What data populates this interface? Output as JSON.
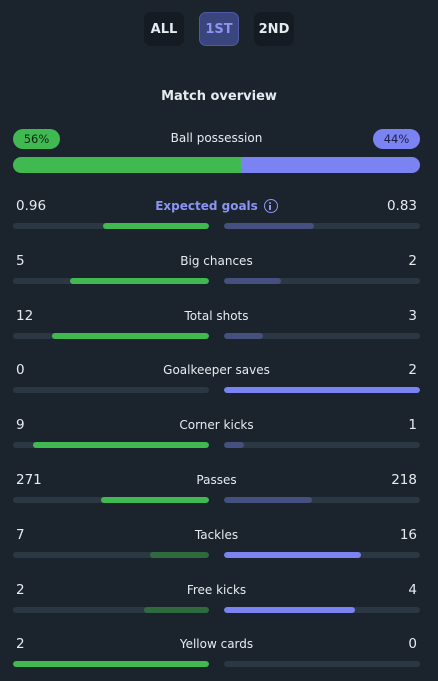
{
  "tabs": [
    {
      "label": "ALL",
      "active": false
    },
    {
      "label": "1ST",
      "active": true
    },
    {
      "label": "2ND",
      "active": false
    }
  ],
  "section_title": "Match overview",
  "possession": {
    "label": "Ball possession",
    "home_label": "56%",
    "away_label": "44%",
    "home": 56,
    "away": 44
  },
  "colors": {
    "home_win": "#3fb950",
    "home_lose": "#2e6a3d",
    "away_win": "#7b82f2",
    "away_lose": "#46507f",
    "track": "#2c3744",
    "accent": "#8b94f2"
  },
  "stats": [
    {
      "label": "Expected goals",
      "home": "0.96",
      "away": "0.83",
      "home_fill": 0.54,
      "away_fill": 0.46,
      "highlight": true
    },
    {
      "label": "Big chances",
      "home": "5",
      "away": "2",
      "home_fill": 0.71,
      "away_fill": 0.29
    },
    {
      "label": "Total shots",
      "home": "12",
      "away": "3",
      "home_fill": 0.8,
      "away_fill": 0.2
    },
    {
      "label": "Goalkeeper saves",
      "home": "0",
      "away": "2",
      "home_fill": 0.0,
      "away_fill": 1.0
    },
    {
      "label": "Corner kicks",
      "home": "9",
      "away": "1",
      "home_fill": 0.9,
      "away_fill": 0.1
    },
    {
      "label": "Passes",
      "home": "271",
      "away": "218",
      "home_fill": 0.55,
      "away_fill": 0.45
    },
    {
      "label": "Tackles",
      "home": "7",
      "away": "16",
      "home_fill": 0.3,
      "away_fill": 0.7
    },
    {
      "label": "Free kicks",
      "home": "2",
      "away": "4",
      "home_fill": 0.33,
      "away_fill": 0.67
    },
    {
      "label": "Yellow cards",
      "home": "2",
      "away": "0",
      "home_fill": 1.0,
      "away_fill": 0.0
    }
  ]
}
